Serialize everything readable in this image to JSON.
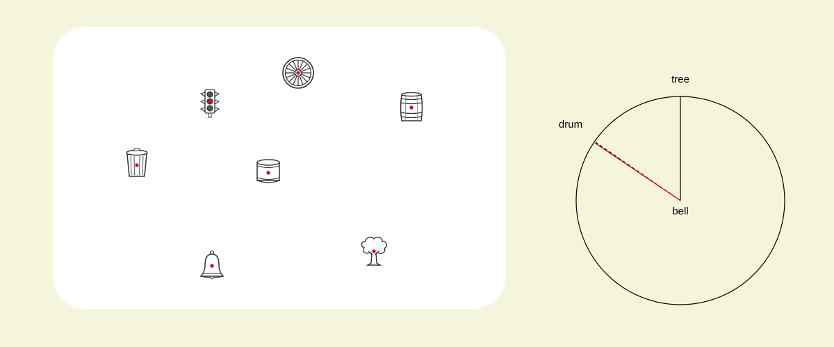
{
  "colors": {
    "background": "#f5f5dc",
    "board": "#ffffff",
    "marker": "#e00000",
    "ink": "#222222",
    "answer_line": "#e00000"
  },
  "objects": [
    {
      "name": "wagon-wheel",
      "icon": "wagon-wheel-icon"
    },
    {
      "name": "traffic-light",
      "icon": "traffic-light-icon"
    },
    {
      "name": "barrel",
      "icon": "barrel-icon"
    },
    {
      "name": "trash-can",
      "icon": "trash-can-icon"
    },
    {
      "name": "drum",
      "icon": "drum-icon"
    },
    {
      "name": "bell",
      "icon": "bell-icon"
    },
    {
      "name": "tree",
      "icon": "tree-icon"
    }
  ],
  "dial": {
    "top_label": "tree",
    "center_label": "bell",
    "answer_label": "drum"
  }
}
